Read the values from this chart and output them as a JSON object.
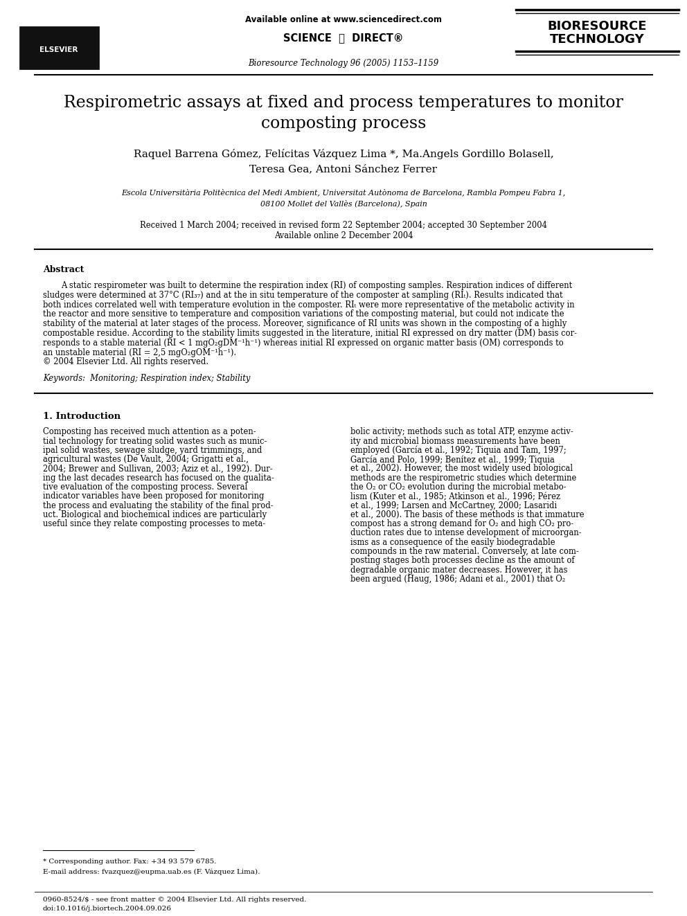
{
  "page_bg": "#ffffff",
  "header_url": "Available online at www.sciencedirect.com",
  "journal_info": "Bioresource Technology 96 (2005) 1153–1159",
  "journal_name_line1": "BIORESOURCE",
  "journal_name_line2": "TECHNOLOGY",
  "title_line1": "Respirometric assays at fixed and process temperatures to monitor",
  "title_line2": "composting process",
  "authors_line1": "Raquel Barrena Gómez, Felícitas Vázquez Lima *, Ma.Angels Gordillo Bolasell,",
  "authors_line2": "Teresa Gea, Antoni Sánchez Ferrer",
  "affil_line1": "Escola Universitària Politècnica del Medi Ambient, Universitat Autònoma de Barcelona, Rambla Pompeu Fabra 1,",
  "affil_line2": "08100 Mollet del Vallès (Barcelona), Spain",
  "received_line1": "Received 1 March 2004; received in revised form 22 September 2004; accepted 30 September 2004",
  "received_line2": "Available online 2 December 2004",
  "abstract_title": "Abstract",
  "abstract_lines": [
    "A static respirometer was built to determine the respiration index (RI) of composting samples. Respiration indices of different",
    "sludges were determined at 37°C (RI₃₇) and at the in situ temperature of the composter at sampling (RIₜ). Results indicated that",
    "both indices correlated well with temperature evolution in the composter. RIₜ were more representative of the metabolic activity in",
    "the reactor and more sensitive to temperature and composition variations of the composting material, but could not indicate the",
    "stability of the material at later stages of the process. Moreover, significance of RI units was shown in the composting of a highly",
    "compostable residue. According to the stability limits suggested in the literature, initial RI expressed on dry matter (DM) basis cor-",
    "responds to a stable material (RI < 1 mgO₂gDM⁻¹h⁻¹) whereas initial RI expressed on organic matter basis (OM) corresponds to",
    "an unstable material (RI = 2,5 mgO₂gOM⁻¹h⁻¹).",
    "© 2004 Elsevier Ltd. All rights reserved."
  ],
  "keywords": "Keywords:  Monitoring; Respiration index; Stability",
  "section1_title": "1. Introduction",
  "col1_lines": [
    "Composting has received much attention as a poten-",
    "tial technology for treating solid wastes such as munic-",
    "ipal solid wastes, sewage sludge, yard trimmings, and",
    "agricultural wastes (De Vault, 2004; Grigatti et al.,",
    "2004; Brewer and Sullivan, 2003; Aziz et al., 1992). Dur-",
    "ing the last decades research has focused on the qualita-",
    "tive evaluation of the composting process. Several",
    "indicator variables have been proposed for monitoring",
    "the process and evaluating the stability of the final prod-",
    "uct. Biological and biochemical indices are particularly",
    "useful since they relate composting processes to meta-"
  ],
  "col2_lines": [
    "bolic activity; methods such as total ATP, enzyme activ-",
    "ity and microbial biomass measurements have been",
    "employed (García et al., 1992; Tiquia and Tam, 1997;",
    "García and Polo, 1999; Benítez et al., 1999; Tiquia",
    "et al., 2002). However, the most widely used biological",
    "methods are the respirometric studies which determine",
    "the O₂ or CO₂ evolution during the microbial metabo-",
    "lism (Kuter et al., 1985; Atkinson et al., 1996; Pérez",
    "et al., 1999; Larsen and McCartney, 2000; Lasaridi",
    "et al., 2000). The basis of these methods is that immature",
    "compost has a strong demand for O₂ and high CO₂ pro-",
    "duction rates due to intense development of microorgan-",
    "isms as a consequence of the easily biodegradable",
    "compounds in the raw material. Conversely, at late com-",
    "posting stages both processes decline as the amount of",
    "degradable organic mater decreases. However, it has",
    "been argued (Haug, 1986; Adani et al., 2001) that O₂"
  ],
  "footnote_star": "* Corresponding author. Fax: +34 93 579 6785.",
  "footnote_email": "E-mail address: fvazquez@eupma.uab.es (F. Vázquez Lima).",
  "footer_issn": "0960-8524/$ - see front matter © 2004 Elsevier Ltd. All rights reserved.",
  "footer_doi": "doi:10.1016/j.biortech.2004.09.026"
}
